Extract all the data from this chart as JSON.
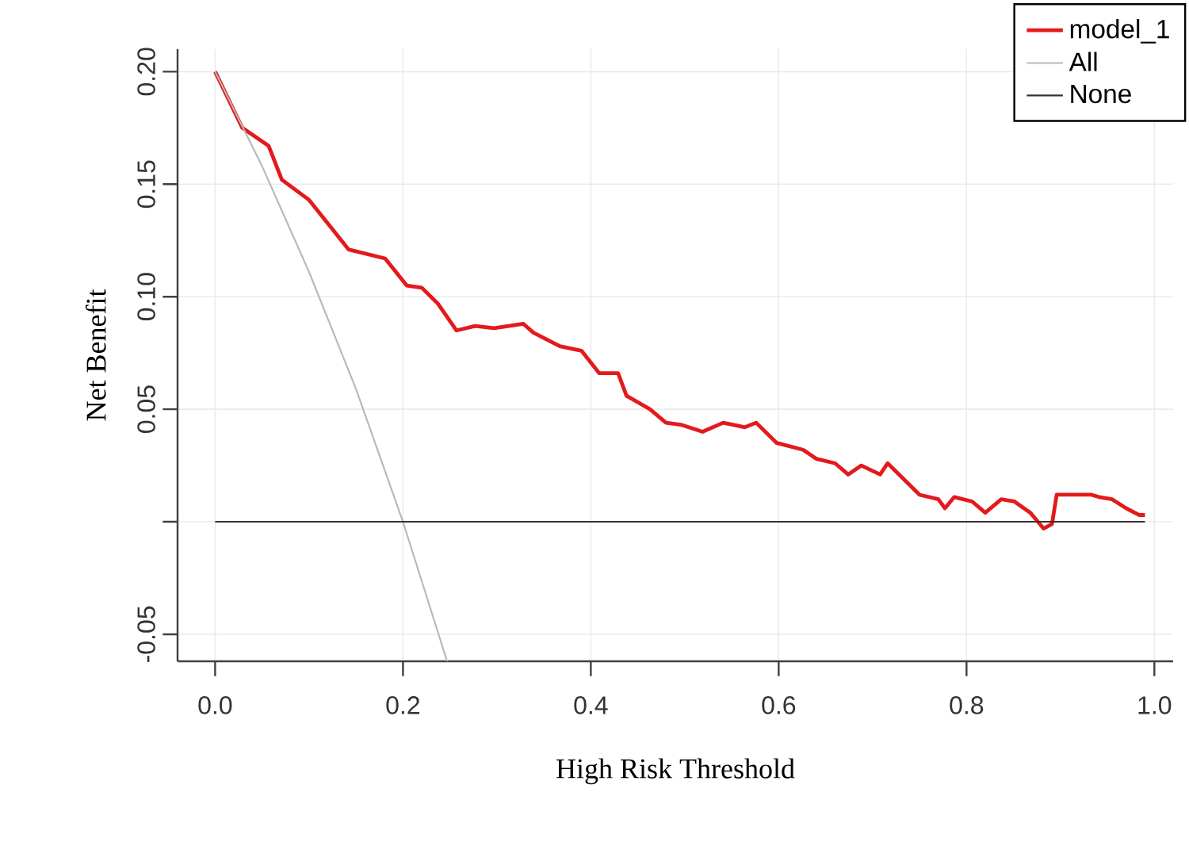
{
  "chart_data": {
    "type": "line",
    "xlabel": "High Risk Threshold",
    "ylabel": "Net Benefit",
    "xlim": [
      -0.04,
      1.02
    ],
    "ylim": [
      -0.062,
      0.21
    ],
    "xticks": [
      {
        "value": 0,
        "label": "0.0"
      },
      0.2,
      0.4,
      0.6,
      0.8,
      {
        "value": 1,
        "label": "1.0"
      }
    ],
    "yticks": [
      {
        "value": -0.05,
        "label": "-0.05"
      },
      {
        "value": 0,
        "label": null
      },
      {
        "value": 0.05,
        "label": "0.05"
      },
      {
        "value": 0.1,
        "label": "0.10"
      },
      {
        "value": 0.15,
        "label": "0.15"
      },
      {
        "value": 0.2,
        "label": "0.20"
      }
    ],
    "grid": true,
    "legend": "top right",
    "series": [
      {
        "name": "model_1",
        "color": "#e31a1c",
        "x": [
          0,
          0.029,
          0.057,
          0.071,
          0.1,
          0.142,
          0.181,
          0.204,
          0.22,
          0.237,
          0.257,
          0.277,
          0.297,
          0.328,
          0.339,
          0.367,
          0.39,
          0.409,
          0.429,
          0.438,
          0.463,
          0.48,
          0.497,
          0.519,
          0.541,
          0.564,
          0.576,
          0.598,
          0.626,
          0.64,
          0.66,
          0.674,
          0.688,
          0.708,
          0.716,
          0.75,
          0.77,
          0.777,
          0.787,
          0.806,
          0.82,
          0.837,
          0.851,
          0.868,
          0.882,
          0.891,
          0.896,
          0.933,
          0.941,
          0.955,
          0.97,
          0.984,
          0.99
        ],
        "values": [
          0.2,
          0.175,
          0.167,
          0.152,
          0.143,
          0.121,
          0.117,
          0.105,
          0.104,
          0.097,
          0.085,
          0.087,
          0.086,
          0.088,
          0.084,
          0.078,
          0.076,
          0.066,
          0.066,
          0.056,
          0.05,
          0.044,
          0.043,
          0.04,
          0.044,
          0.042,
          0.044,
          0.035,
          0.032,
          0.028,
          0.026,
          0.021,
          0.025,
          0.021,
          0.026,
          0.012,
          0.01,
          0.006,
          0.011,
          0.009,
          0.004,
          0.01,
          0.009,
          0.004,
          -0.003,
          -0.001,
          0.012,
          0.012,
          0.011,
          0.01,
          0.006,
          0.003,
          0.003
        ]
      },
      {
        "name": "All",
        "color": "#b8b8b8",
        "x": [
          0,
          0.05,
          0.1,
          0.15,
          0.2,
          0.247
        ],
        "values": [
          0.2,
          0.158,
          0.111,
          0.059,
          0,
          -0.062
        ]
      },
      {
        "name": "None",
        "color": "#333333",
        "x": [
          0,
          0.99
        ],
        "values": [
          0,
          0
        ]
      }
    ]
  }
}
